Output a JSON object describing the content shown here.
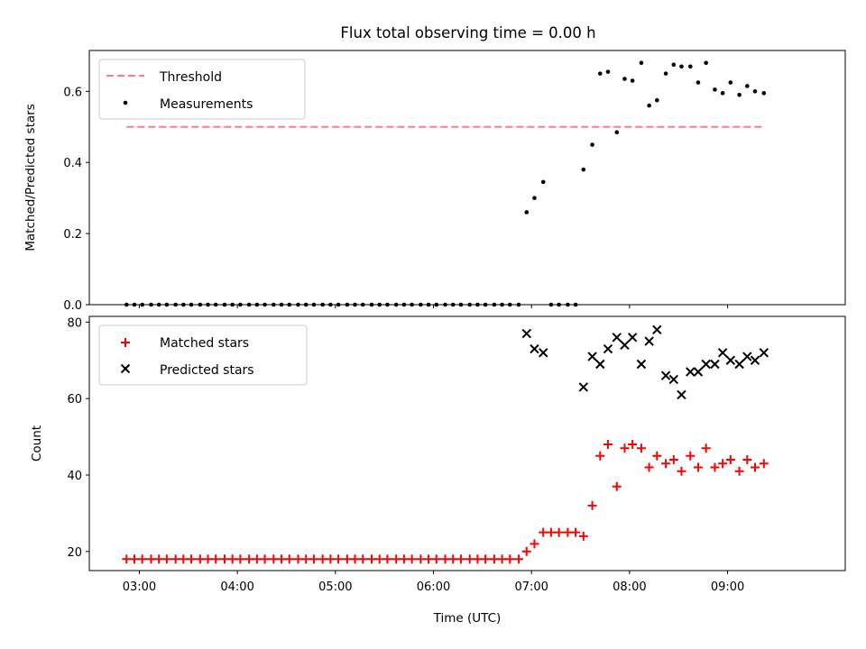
{
  "chart_data": [
    {
      "type": "scatter",
      "title": "Flux total observing time = 0.00 h",
      "xlabel": "",
      "ylabel": "Matched/Predicted stars",
      "xlim": [
        2.49,
        10.2
      ],
      "ylim": [
        0.0,
        0.715
      ],
      "x_ticks": [
        3,
        4,
        5,
        6,
        7,
        8,
        9
      ],
      "y_ticks": [
        0.0,
        0.2,
        0.4,
        0.6
      ],
      "y_tick_labels": [
        "0.0",
        "0.2",
        "0.4",
        "0.6"
      ],
      "legend_position": "top-left",
      "threshold": {
        "name": "Threshold",
        "value": 0.5,
        "x_range": [
          2.87,
          9.35
        ],
        "color": "#ff7f7f"
      },
      "series": [
        {
          "name": "Measurements",
          "color": "#000000",
          "marker": "dot",
          "points": [
            [
              2.87,
              0
            ],
            [
              2.95,
              0
            ],
            [
              3.03,
              0
            ],
            [
              3.12,
              0
            ],
            [
              3.2,
              0
            ],
            [
              3.28,
              0
            ],
            [
              3.37,
              0
            ],
            [
              3.45,
              0
            ],
            [
              3.53,
              0
            ],
            [
              3.62,
              0
            ],
            [
              3.7,
              0
            ],
            [
              3.78,
              0
            ],
            [
              3.87,
              0
            ],
            [
              3.95,
              0
            ],
            [
              4.03,
              0
            ],
            [
              4.12,
              0
            ],
            [
              4.2,
              0
            ],
            [
              4.28,
              0
            ],
            [
              4.37,
              0
            ],
            [
              4.45,
              0
            ],
            [
              4.53,
              0
            ],
            [
              4.62,
              0
            ],
            [
              4.7,
              0
            ],
            [
              4.78,
              0
            ],
            [
              4.87,
              0
            ],
            [
              4.95,
              0
            ],
            [
              5.03,
              0
            ],
            [
              5.12,
              0
            ],
            [
              5.2,
              0
            ],
            [
              5.28,
              0
            ],
            [
              5.37,
              0
            ],
            [
              5.45,
              0
            ],
            [
              5.53,
              0
            ],
            [
              5.62,
              0
            ],
            [
              5.7,
              0
            ],
            [
              5.78,
              0
            ],
            [
              5.87,
              0
            ],
            [
              5.95,
              0
            ],
            [
              6.03,
              0
            ],
            [
              6.12,
              0
            ],
            [
              6.2,
              0
            ],
            [
              6.28,
              0
            ],
            [
              6.37,
              0
            ],
            [
              6.45,
              0
            ],
            [
              6.53,
              0
            ],
            [
              6.62,
              0
            ],
            [
              6.7,
              0
            ],
            [
              6.78,
              0
            ],
            [
              6.87,
              0
            ],
            [
              6.95,
              0.26
            ],
            [
              7.03,
              0.3
            ],
            [
              7.12,
              0.345
            ],
            [
              7.2,
              0
            ],
            [
              7.28,
              0
            ],
            [
              7.37,
              0
            ],
            [
              7.45,
              0
            ],
            [
              7.53,
              0.38
            ],
            [
              7.62,
              0.45
            ],
            [
              7.7,
              0.65
            ],
            [
              7.78,
              0.655
            ],
            [
              7.87,
              0.485
            ],
            [
              7.95,
              0.635
            ],
            [
              8.03,
              0.63
            ],
            [
              8.12,
              0.68
            ],
            [
              8.2,
              0.56
            ],
            [
              8.28,
              0.575
            ],
            [
              8.37,
              0.65
            ],
            [
              8.45,
              0.675
            ],
            [
              8.53,
              0.67
            ],
            [
              8.62,
              0.67
            ],
            [
              8.7,
              0.625
            ],
            [
              8.78,
              0.68
            ],
            [
              8.87,
              0.605
            ],
            [
              8.95,
              0.595
            ],
            [
              9.03,
              0.625
            ],
            [
              9.12,
              0.59
            ],
            [
              9.2,
              0.615
            ],
            [
              9.28,
              0.6
            ],
            [
              9.37,
              0.595
            ]
          ]
        }
      ]
    },
    {
      "type": "scatter",
      "title": "",
      "xlabel": "Time (UTC)",
      "ylabel": "Count",
      "xlim": [
        2.49,
        10.2
      ],
      "ylim": [
        15,
        81.5
      ],
      "x_ticks": [
        3,
        4,
        5,
        6,
        7,
        8,
        9
      ],
      "x_tick_labels": [
        "03:00",
        "04:00",
        "05:00",
        "06:00",
        "07:00",
        "08:00",
        "09:00"
      ],
      "y_ticks": [
        20,
        40,
        60,
        80
      ],
      "y_tick_labels": [
        "20",
        "40",
        "60",
        "80"
      ],
      "legend_position": "top-left",
      "series": [
        {
          "name": "Matched stars",
          "color": "#ff0000",
          "marker": "plus",
          "points": [
            [
              2.87,
              18
            ],
            [
              2.95,
              18
            ],
            [
              3.03,
              18
            ],
            [
              3.12,
              18
            ],
            [
              3.2,
              18
            ],
            [
              3.28,
              18
            ],
            [
              3.37,
              18
            ],
            [
              3.45,
              18
            ],
            [
              3.53,
              18
            ],
            [
              3.62,
              18
            ],
            [
              3.7,
              18
            ],
            [
              3.78,
              18
            ],
            [
              3.87,
              18
            ],
            [
              3.95,
              18
            ],
            [
              4.03,
              18
            ],
            [
              4.12,
              18
            ],
            [
              4.2,
              18
            ],
            [
              4.28,
              18
            ],
            [
              4.37,
              18
            ],
            [
              4.45,
              18
            ],
            [
              4.53,
              18
            ],
            [
              4.62,
              18
            ],
            [
              4.7,
              18
            ],
            [
              4.78,
              18
            ],
            [
              4.87,
              18
            ],
            [
              4.95,
              18
            ],
            [
              5.03,
              18
            ],
            [
              5.12,
              18
            ],
            [
              5.2,
              18
            ],
            [
              5.28,
              18
            ],
            [
              5.37,
              18
            ],
            [
              5.45,
              18
            ],
            [
              5.53,
              18
            ],
            [
              5.62,
              18
            ],
            [
              5.7,
              18
            ],
            [
              5.78,
              18
            ],
            [
              5.87,
              18
            ],
            [
              5.95,
              18
            ],
            [
              6.03,
              18
            ],
            [
              6.12,
              18
            ],
            [
              6.2,
              18
            ],
            [
              6.28,
              18
            ],
            [
              6.37,
              18
            ],
            [
              6.45,
              18
            ],
            [
              6.53,
              18
            ],
            [
              6.62,
              18
            ],
            [
              6.7,
              18
            ],
            [
              6.78,
              18
            ],
            [
              6.87,
              18
            ],
            [
              6.95,
              20
            ],
            [
              7.03,
              22
            ],
            [
              7.12,
              25
            ],
            [
              7.2,
              25
            ],
            [
              7.28,
              25
            ],
            [
              7.37,
              25
            ],
            [
              7.45,
              25
            ],
            [
              7.53,
              24
            ],
            [
              7.62,
              32
            ],
            [
              7.7,
              45
            ],
            [
              7.78,
              48
            ],
            [
              7.87,
              37
            ],
            [
              7.95,
              47
            ],
            [
              8.03,
              48
            ],
            [
              8.12,
              47
            ],
            [
              8.2,
              42
            ],
            [
              8.28,
              45
            ],
            [
              8.37,
              43
            ],
            [
              8.45,
              44
            ],
            [
              8.53,
              41
            ],
            [
              8.62,
              45
            ],
            [
              8.7,
              42
            ],
            [
              8.78,
              47
            ],
            [
              8.87,
              42
            ],
            [
              8.95,
              43
            ],
            [
              9.03,
              44
            ],
            [
              9.12,
              41
            ],
            [
              9.2,
              44
            ],
            [
              9.28,
              42
            ],
            [
              9.37,
              43
            ]
          ]
        },
        {
          "name": "Predicted stars",
          "color": "#000000",
          "marker": "x",
          "points": [
            [
              6.95,
              77
            ],
            [
              7.03,
              73
            ],
            [
              7.12,
              72
            ],
            [
              7.53,
              63
            ],
            [
              7.62,
              71
            ],
            [
              7.7,
              69
            ],
            [
              7.78,
              73
            ],
            [
              7.87,
              76
            ],
            [
              7.95,
              74
            ],
            [
              8.03,
              76
            ],
            [
              8.12,
              69
            ],
            [
              8.2,
              75
            ],
            [
              8.28,
              78
            ],
            [
              8.37,
              66
            ],
            [
              8.45,
              65
            ],
            [
              8.53,
              61
            ],
            [
              8.62,
              67
            ],
            [
              8.7,
              67
            ],
            [
              8.78,
              69
            ],
            [
              8.87,
              69
            ],
            [
              8.95,
              72
            ],
            [
              9.03,
              70
            ],
            [
              9.12,
              69
            ],
            [
              9.2,
              71
            ],
            [
              9.28,
              70
            ],
            [
              9.37,
              72
            ]
          ]
        }
      ]
    }
  ]
}
